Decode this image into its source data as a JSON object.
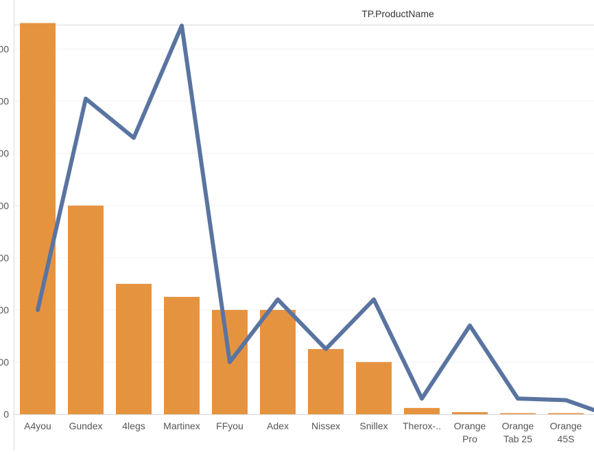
{
  "header": {
    "title": "TP.ProductName"
  },
  "chart_data": {
    "type": "bar",
    "title": "TP.ProductName",
    "xlabel": "",
    "ylabel": "",
    "categories": [
      [
        "A4you"
      ],
      [
        "Gundex"
      ],
      [
        "4legs"
      ],
      [
        "Martinex"
      ],
      [
        "FFyou"
      ],
      [
        "Adex"
      ],
      [
        "Nissex"
      ],
      [
        "Snillex"
      ],
      [
        "Therox-.."
      ],
      [
        "Orange",
        "Pro"
      ],
      [
        "Orange",
        "Tab 25"
      ],
      [
        "Orange",
        "45S"
      ]
    ],
    "y_tick_labels": [
      "0",
      "00",
      "00",
      "00",
      "00",
      "00",
      "00",
      "00"
    ],
    "ylim": [
      0,
      7.6
    ],
    "grid": true,
    "series": [
      {
        "type": "bar",
        "color": "#E69340",
        "values": [
          7.5,
          4.0,
          2.5,
          2.25,
          2.0,
          2.0,
          1.25,
          1.0,
          0.12,
          0.04,
          0.02,
          0.02
        ]
      },
      {
        "type": "line",
        "color": "#5A74A1",
        "values": [
          2.0,
          6.05,
          5.3,
          7.45,
          1.0,
          2.2,
          1.25,
          2.2,
          0.3,
          1.7,
          0.3,
          0.27
        ],
        "extends_right_edge_value": 0.08
      }
    ]
  }
}
